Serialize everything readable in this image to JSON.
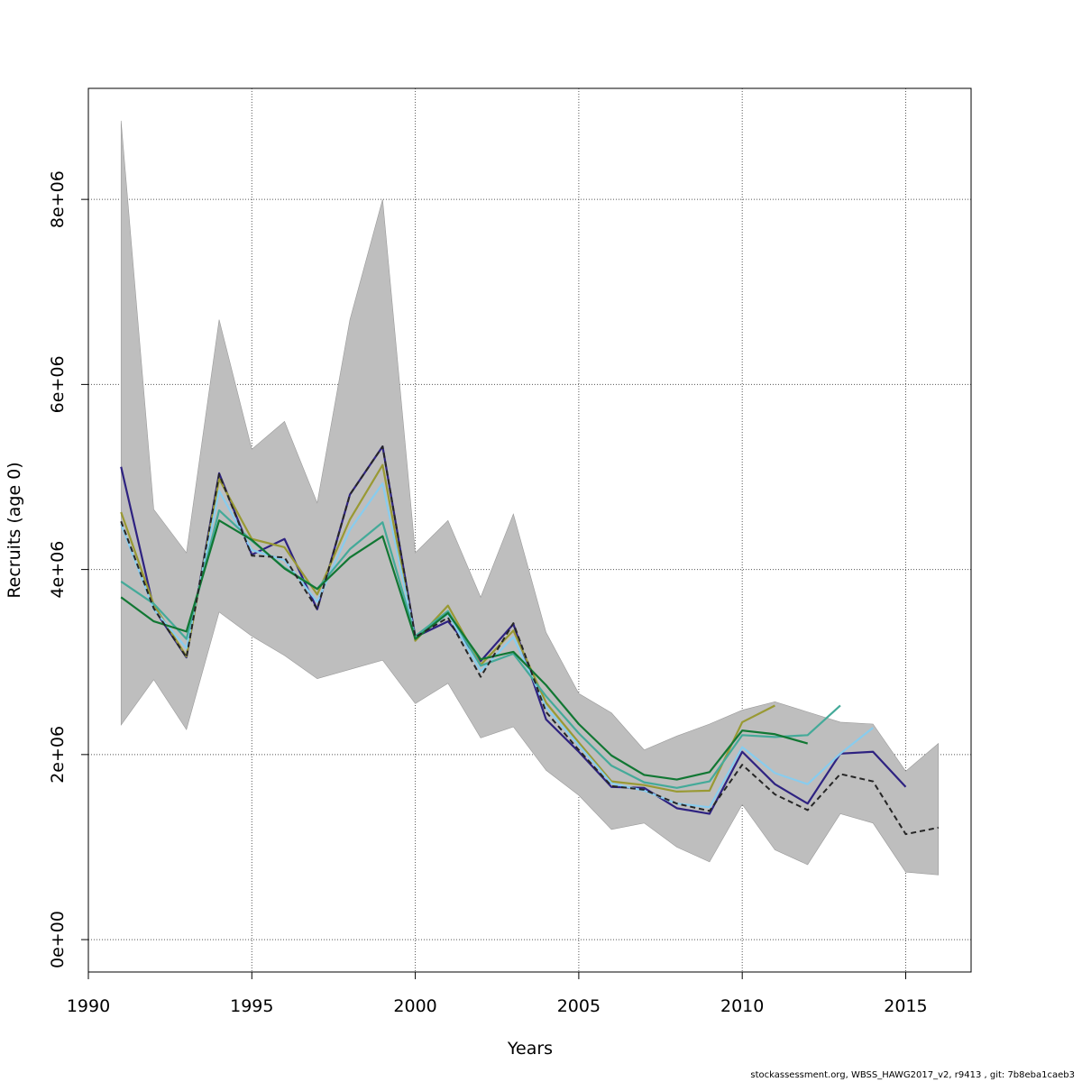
{
  "chart_data": {
    "type": "line",
    "title": "",
    "xlabel": "Years",
    "ylabel": "Recruits (age 0)",
    "xlim": [
      1990,
      2017
    ],
    "ylim": [
      -350000,
      9200000
    ],
    "xticks": [
      1990,
      1995,
      2000,
      2005,
      2010,
      2015
    ],
    "xtick_labels": [
      "1990",
      "1995",
      "2000",
      "2005",
      "2010",
      "2015"
    ],
    "yticks": [
      0,
      2000000,
      4000000,
      6000000,
      8000000
    ],
    "ytick_labels": [
      "0e+00",
      "2e+06",
      "4e+06",
      "6e+06",
      "8e+06"
    ],
    "grid": true,
    "confidence_band": {
      "color": "#bebebe",
      "x": [
        1991,
        1992,
        1993,
        1994,
        1995,
        1996,
        1997,
        1998,
        1999,
        2000,
        2001,
        2002,
        2003,
        2004,
        2005,
        2006,
        2007,
        2008,
        2009,
        2010,
        2011,
        2012,
        2013,
        2014,
        2015,
        2016
      ],
      "upper": [
        8850000,
        4650000,
        4180000,
        6700000,
        5300000,
        5600000,
        4720000,
        6700000,
        8000000,
        4180000,
        4530000,
        3700000,
        4600000,
        3320000,
        2660000,
        2450000,
        2050000,
        2200000,
        2330000,
        2480000,
        2570000,
        2460000,
        2350000,
        2330000,
        1820000,
        2120000
      ],
      "lower": [
        2320000,
        2810000,
        2270000,
        3540000,
        3280000,
        3070000,
        2820000,
        2920000,
        3020000,
        2550000,
        2770000,
        2180000,
        2300000,
        1830000,
        1560000,
        1190000,
        1260000,
        1000000,
        840000,
        1460000,
        970000,
        810000,
        1360000,
        1260000,
        730000,
        700000
      ]
    },
    "series": [
      {
        "color": "#262626",
        "dashed": true,
        "x": [
          1991,
          1992,
          1993,
          1994,
          1995,
          1996,
          1997,
          1998,
          1999,
          2000,
          2001,
          2002,
          2003,
          2004,
          2005,
          2006,
          2007,
          2008,
          2009,
          2010,
          2011,
          2012,
          2013,
          2014,
          2015,
          2016
        ],
        "values": [
          4520000,
          3580000,
          3050000,
          5030000,
          4150000,
          4130000,
          3570000,
          4810000,
          5330000,
          3270000,
          3480000,
          2840000,
          3420000,
          2460000,
          2050000,
          1660000,
          1620000,
          1470000,
          1390000,
          1890000,
          1570000,
          1400000,
          1790000,
          1710000,
          1140000,
          1210000
        ]
      },
      {
        "color": "#2e2281",
        "dashed": false,
        "x": [
          1991,
          1992,
          1993,
          1994,
          1995,
          1996,
          1997,
          1998,
          1999,
          2000,
          2001,
          2002,
          2003,
          2004,
          2005,
          2006,
          2007,
          2008,
          2009,
          2010,
          2011,
          2012,
          2013,
          2014,
          2015
        ],
        "values": [
          5110000,
          3580000,
          3050000,
          5040000,
          4160000,
          4330000,
          3570000,
          4810000,
          5330000,
          3270000,
          3440000,
          3010000,
          3410000,
          2380000,
          2030000,
          1650000,
          1640000,
          1420000,
          1360000,
          2030000,
          1680000,
          1470000,
          2010000,
          2030000,
          1650000
        ]
      },
      {
        "color": "#999933",
        "dashed": false,
        "x": [
          1991,
          1992,
          1993,
          1994,
          1995,
          1996,
          1997,
          1998,
          1999,
          2000,
          2001,
          2002,
          2003,
          2004,
          2005,
          2006,
          2007,
          2008,
          2009,
          2010,
          2011
        ],
        "values": [
          4620000,
          3620000,
          3060000,
          4980000,
          4330000,
          4240000,
          3730000,
          4540000,
          5130000,
          3230000,
          3610000,
          2970000,
          3340000,
          2560000,
          2130000,
          1710000,
          1670000,
          1600000,
          1610000,
          2350000,
          2530000
        ]
      },
      {
        "color": "#88ccee",
        "dashed": false,
        "x": [
          1991,
          1992,
          1993,
          1994,
          1995,
          1996,
          1997,
          1998,
          1999,
          2000,
          2001,
          2002,
          2003,
          2004,
          2005,
          2006,
          2007,
          2008,
          2009,
          2010,
          2011,
          2012,
          2013,
          2014
        ],
        "values": [
          4490000,
          3570000,
          3150000,
          4850000,
          4210000,
          4100000,
          3650000,
          4430000,
          4930000,
          3260000,
          3520000,
          2900000,
          3270000,
          2510000,
          2100000,
          1690000,
          1610000,
          1470000,
          1430000,
          2080000,
          1800000,
          1680000,
          2010000,
          2290000
        ]
      },
      {
        "color": "#44aa99",
        "dashed": false,
        "x": [
          1991,
          1992,
          1993,
          1994,
          1995,
          1996,
          1997,
          1998,
          1999,
          2000,
          2001,
          2002,
          2003,
          2004,
          2005,
          2006,
          2007,
          2008,
          2009,
          2010,
          2011,
          2012,
          2013
        ],
        "values": [
          3870000,
          3630000,
          3250000,
          4640000,
          4310000,
          4020000,
          3790000,
          4220000,
          4510000,
          3280000,
          3550000,
          2960000,
          3090000,
          2630000,
          2230000,
          1880000,
          1700000,
          1640000,
          1710000,
          2210000,
          2190000,
          2210000,
          2530000
        ]
      },
      {
        "color": "#117733",
        "dashed": false,
        "x": [
          1991,
          1992,
          1993,
          1994,
          1995,
          1996,
          1997,
          1998,
          1999,
          2000,
          2001,
          2002,
          2003,
          2004,
          2005,
          2006,
          2007,
          2008,
          2009,
          2010,
          2011,
          2012
        ],
        "values": [
          3700000,
          3440000,
          3330000,
          4530000,
          4320000,
          4010000,
          3790000,
          4130000,
          4360000,
          3250000,
          3530000,
          3030000,
          3110000,
          2750000,
          2330000,
          1990000,
          1780000,
          1730000,
          1810000,
          2260000,
          2220000,
          2120000
        ]
      }
    ]
  },
  "footer": "stockassessment.org, WBSS_HAWG2017_v2, r9413 , git: 7b8eba1caeb3"
}
